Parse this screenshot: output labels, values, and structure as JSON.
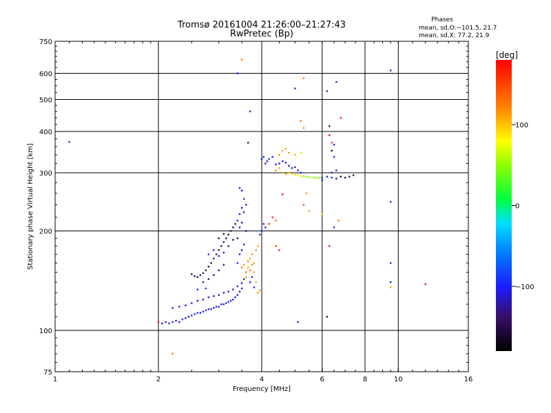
{
  "chart_data": {
    "type": "scatter",
    "title": "Tromsø 20161004 21:26:00–21:27:43",
    "subtitle": "RwPretec (Bp)",
    "xlabel": "Frequency [MHz]",
    "ylabel": "Stationary phase Virtual Height [km]",
    "x_scale": "log",
    "y_scale": "log",
    "xlim": [
      1,
      16
    ],
    "ylim": [
      75,
      750
    ],
    "x_ticks": [
      1,
      2,
      4,
      6,
      8,
      10,
      16
    ],
    "x_tick_labels": [
      "1",
      "2",
      "4",
      "6",
      "8",
      "10",
      "16"
    ],
    "x_grid_lines": [
      2,
      4,
      6,
      8,
      10
    ],
    "y_ticks": [
      75,
      100,
      200,
      300,
      400,
      500,
      600,
      750
    ],
    "y_tick_labels": [
      "75",
      "100",
      "200",
      "300",
      "400",
      "500",
      "600",
      "750"
    ],
    "y_grid_lines": [
      100,
      200,
      300,
      400,
      500,
      600
    ],
    "grid": true,
    "stats": {
      "header": "Phases",
      "line_o": "mean, sd,O:−101.5, 21.7",
      "line_x": "mean, sd,X:  77.2, 21.9"
    },
    "colorbar": {
      "label": "[deg]",
      "range": [
        -180,
        180
      ],
      "ticks": [
        100,
        0,
        -100
      ],
      "tick_labels": [
        "100",
        "0",
        "−100"
      ]
    },
    "series": [
      {
        "points": [
          [
            1.1,
            372,
            -100
          ],
          [
            2.05,
            105,
            -100
          ],
          [
            2.1,
            106,
            -110
          ],
          [
            2.15,
            105,
            -95
          ],
          [
            2.2,
            106,
            -100
          ],
          [
            2.25,
            107,
            -110
          ],
          [
            2.3,
            106,
            -100
          ],
          [
            2.35,
            108,
            -95
          ],
          [
            2.4,
            109,
            -100
          ],
          [
            2.45,
            110,
            -110
          ],
          [
            2.5,
            111,
            -100
          ],
          [
            2.55,
            112,
            -90
          ],
          [
            2.6,
            113,
            -100
          ],
          [
            2.65,
            113,
            -110
          ],
          [
            2.7,
            114,
            -100
          ],
          [
            2.75,
            115,
            -95
          ],
          [
            2.8,
            116,
            -100
          ],
          [
            2.85,
            116,
            -110
          ],
          [
            2.9,
            117,
            -100
          ],
          [
            2.95,
            118,
            -95
          ],
          [
            3.0,
            118,
            -100
          ],
          [
            3.05,
            120,
            -110
          ],
          [
            3.1,
            120,
            -100
          ],
          [
            3.15,
            121,
            -95
          ],
          [
            3.2,
            122,
            -100
          ],
          [
            3.25,
            123,
            -110
          ],
          [
            3.3,
            124,
            -100
          ],
          [
            3.35,
            126,
            -95
          ],
          [
            3.4,
            128,
            -100
          ],
          [
            3.45,
            131,
            -110
          ],
          [
            3.5,
            134,
            -100
          ],
          [
            2.2,
            117,
            -105
          ],
          [
            2.3,
            118,
            -115
          ],
          [
            2.4,
            119,
            -105
          ],
          [
            2.5,
            121,
            -100
          ],
          [
            2.6,
            123,
            -115
          ],
          [
            2.7,
            124,
            -105
          ],
          [
            2.8,
            126,
            -110
          ],
          [
            2.9,
            127,
            -130
          ],
          [
            3.0,
            128,
            -105
          ],
          [
            3.1,
            130,
            -115
          ],
          [
            3.2,
            131,
            -105
          ],
          [
            3.3,
            133,
            -110
          ],
          [
            3.4,
            136,
            -100
          ],
          [
            3.5,
            139,
            -105
          ],
          [
            3.55,
            143,
            -110
          ],
          [
            2.6,
            133,
            -100
          ],
          [
            2.75,
            134,
            -90
          ],
          [
            2.5,
            148,
            -140
          ],
          [
            2.55,
            146,
            -130
          ],
          [
            2.6,
            145,
            -150
          ],
          [
            2.65,
            147,
            -140
          ],
          [
            2.7,
            149,
            -130
          ],
          [
            2.75,
            152,
            -140
          ],
          [
            2.8,
            156,
            -150
          ],
          [
            2.85,
            160,
            -140
          ],
          [
            2.9,
            165,
            -130
          ],
          [
            2.95,
            170,
            -140
          ],
          [
            3.0,
            175,
            -150
          ],
          [
            3.05,
            180,
            -140
          ],
          [
            3.1,
            185,
            -130
          ],
          [
            3.15,
            190,
            -140
          ],
          [
            3.2,
            195,
            -150
          ],
          [
            3.25,
            200,
            -140
          ],
          [
            3.3,
            205,
            -130
          ],
          [
            3.35,
            210,
            -140
          ],
          [
            2.7,
            140,
            -120
          ],
          [
            2.8,
            143,
            -130
          ],
          [
            2.9,
            147,
            -125
          ],
          [
            3.0,
            152,
            -120
          ],
          [
            3.1,
            158,
            -130
          ],
          [
            2.8,
            170,
            -100
          ],
          [
            2.9,
            175,
            -110
          ],
          [
            3.0,
            168,
            -105
          ],
          [
            3.1,
            172,
            -100
          ],
          [
            3.0,
            190,
            -150
          ],
          [
            3.1,
            196,
            -145
          ],
          [
            3.2,
            180,
            -150
          ],
          [
            3.3,
            188,
            -140
          ],
          [
            3.4,
            215,
            -100
          ],
          [
            3.45,
            225,
            -110
          ],
          [
            3.5,
            235,
            -100
          ],
          [
            3.55,
            250,
            -95
          ],
          [
            3.5,
            265,
            -100
          ],
          [
            3.45,
            270,
            -110
          ],
          [
            3.5,
            212,
            -130
          ],
          [
            3.6,
            200,
            -120
          ],
          [
            3.4,
            190,
            -140
          ],
          [
            3.45,
            205,
            -120
          ],
          [
            3.55,
            228,
            -110
          ],
          [
            3.6,
            240,
            -100
          ],
          [
            3.4,
            160,
            -100
          ],
          [
            3.45,
            170,
            -110
          ],
          [
            3.5,
            175,
            -100
          ],
          [
            3.55,
            182,
            -95
          ],
          [
            3.6,
            150,
            -110
          ],
          [
            3.7,
            140,
            -100
          ],
          [
            3.75,
            145,
            -105
          ],
          [
            3.8,
            135,
            -100
          ],
          [
            3.5,
            155,
            120
          ],
          [
            3.55,
            158,
            110
          ],
          [
            3.6,
            150,
            115
          ],
          [
            3.65,
            162,
            120
          ],
          [
            3.7,
            165,
            110
          ],
          [
            3.75,
            170,
            120
          ],
          [
            3.8,
            160,
            115
          ],
          [
            3.85,
            175,
            120
          ],
          [
            3.9,
            180,
            110
          ],
          [
            3.6,
            145,
            120
          ],
          [
            3.7,
            152,
            130
          ],
          [
            3.8,
            150,
            115
          ],
          [
            3.65,
            155,
            110
          ],
          [
            3.75,
            158,
            125
          ],
          [
            3.85,
            140,
            110
          ],
          [
            3.9,
            130,
            120
          ],
          [
            3.95,
            132,
            115
          ],
          [
            4.0,
            200,
            -100
          ],
          [
            4.05,
            210,
            -110
          ],
          [
            3.95,
            195,
            -95
          ],
          [
            4.1,
            205,
            -100
          ],
          [
            2.0,
            106,
            180
          ],
          [
            2.2,
            85,
            130
          ],
          [
            3.5,
            660,
            130
          ],
          [
            3.4,
            600,
            -100
          ],
          [
            3.7,
            460,
            -110
          ],
          [
            3.65,
            370,
            -140
          ],
          [
            4.0,
            330,
            -100
          ],
          [
            4.05,
            335,
            -110
          ],
          [
            4.1,
            320,
            -100
          ],
          [
            4.15,
            325,
            -110
          ],
          [
            4.2,
            330,
            -95
          ],
          [
            4.3,
            335,
            -100
          ],
          [
            4.4,
            318,
            -110
          ],
          [
            4.5,
            320,
            -100
          ],
          [
            4.6,
            325,
            -105
          ],
          [
            4.7,
            322,
            -100
          ],
          [
            4.8,
            315,
            -110
          ],
          [
            4.9,
            310,
            -100
          ],
          [
            5.0,
            312,
            -105
          ],
          [
            5.1,
            305,
            -110
          ],
          [
            5.2,
            300,
            -100
          ],
          [
            4.4,
            305,
            120
          ],
          [
            4.5,
            310,
            110
          ],
          [
            4.6,
            300,
            115
          ],
          [
            4.7,
            298,
            120
          ],
          [
            4.8,
            300,
            110
          ],
          [
            4.9,
            298,
            100
          ],
          [
            5.0,
            296,
            90
          ],
          [
            5.1,
            295,
            80
          ],
          [
            5.2,
            293,
            60
          ],
          [
            5.3,
            293,
            50
          ],
          [
            5.4,
            292,
            40
          ],
          [
            5.5,
            291,
            50
          ],
          [
            5.6,
            290,
            60
          ],
          [
            5.7,
            290,
            45
          ],
          [
            5.8,
            290,
            50
          ],
          [
            5.9,
            290,
            40
          ],
          [
            4.5,
            340,
            120
          ],
          [
            4.6,
            350,
            110
          ],
          [
            4.7,
            355,
            115
          ],
          [
            4.8,
            345,
            120
          ],
          [
            5.0,
            340,
            110
          ],
          [
            5.2,
            345,
            90
          ],
          [
            6.0,
            290,
            -100
          ],
          [
            6.2,
            292,
            -110
          ],
          [
            6.4,
            290,
            -100
          ],
          [
            6.6,
            288,
            -140
          ],
          [
            6.8,
            292,
            -150
          ],
          [
            7.0,
            290,
            -140
          ],
          [
            7.2,
            292,
            -150
          ],
          [
            7.4,
            295,
            -140
          ],
          [
            6.0,
            285,
            -100
          ],
          [
            6.4,
            300,
            -110
          ],
          [
            6.6,
            305,
            -100
          ],
          [
            5.0,
            540,
            -100
          ],
          [
            5.3,
            580,
            130
          ],
          [
            5.2,
            430,
            130
          ],
          [
            5.3,
            410,
            120
          ],
          [
            6.2,
            530,
            -100
          ],
          [
            6.6,
            565,
            -100
          ],
          [
            6.8,
            440,
            170
          ],
          [
            6.3,
            415,
            -150
          ],
          [
            6.3,
            390,
            180
          ],
          [
            6.4,
            370,
            160
          ],
          [
            6.5,
            365,
            -100
          ],
          [
            6.4,
            350,
            -150
          ],
          [
            6.5,
            335,
            -100
          ],
          [
            4.6,
            258,
            170
          ],
          [
            5.4,
            260,
            110
          ],
          [
            5.3,
            240,
            140
          ],
          [
            5.5,
            230,
            120
          ],
          [
            6.0,
            225,
            100
          ],
          [
            6.3,
            180,
            170
          ],
          [
            6.5,
            205,
            -100
          ],
          [
            6.7,
            215,
            120
          ],
          [
            6.2,
            110,
            -150
          ],
          [
            5.1,
            106,
            -100
          ],
          [
            4.4,
            180,
            150
          ],
          [
            4.5,
            175,
            170
          ],
          [
            4.2,
            210,
            160
          ],
          [
            4.3,
            220,
            170
          ],
          [
            4.4,
            215,
            130
          ],
          [
            9.5,
            612,
            -100
          ],
          [
            9.5,
            245,
            -100
          ],
          [
            9.5,
            160,
            -100
          ],
          [
            9.5,
            140,
            -100
          ],
          [
            9.5,
            135,
            110
          ],
          [
            12.0,
            138,
            170
          ]
        ]
      }
    ]
  }
}
